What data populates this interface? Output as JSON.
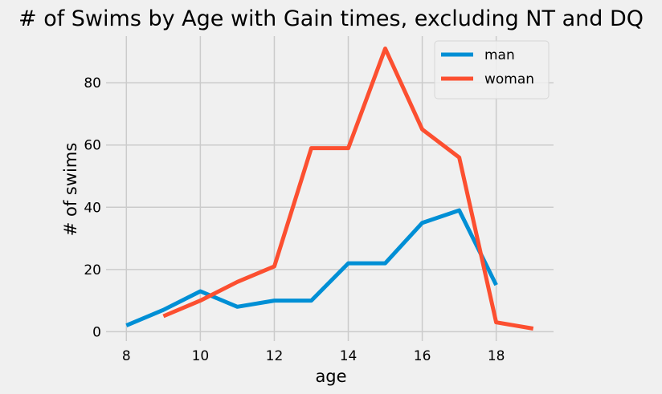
{
  "chart_data": {
    "type": "line",
    "title": "# of Swims by Age with Gain times, excluding NT and DQ",
    "xlabel": "age",
    "ylabel": "# of swims",
    "xlim": [
      7.45,
      19.55
    ],
    "ylim": [
      -3,
      95
    ],
    "xticks": [
      8,
      10,
      12,
      14,
      16,
      18
    ],
    "yticks": [
      0,
      20,
      40,
      60,
      80
    ],
    "grid": true,
    "legend_position": "top-right",
    "series": [
      {
        "name": "man",
        "color": "#008fd5",
        "x": [
          8,
          9,
          10,
          11,
          12,
          13,
          14,
          15,
          16,
          17,
          18
        ],
        "y": [
          2,
          7,
          13,
          8,
          10,
          10,
          22,
          22,
          35,
          39,
          15
        ]
      },
      {
        "name": "woman",
        "color": "#fc4f30",
        "x": [
          9,
          10,
          11,
          12,
          13,
          14,
          15,
          16,
          17,
          18,
          19
        ],
        "y": [
          5,
          10,
          16,
          21,
          59,
          59,
          91,
          65,
          56,
          3,
          1
        ]
      }
    ]
  }
}
